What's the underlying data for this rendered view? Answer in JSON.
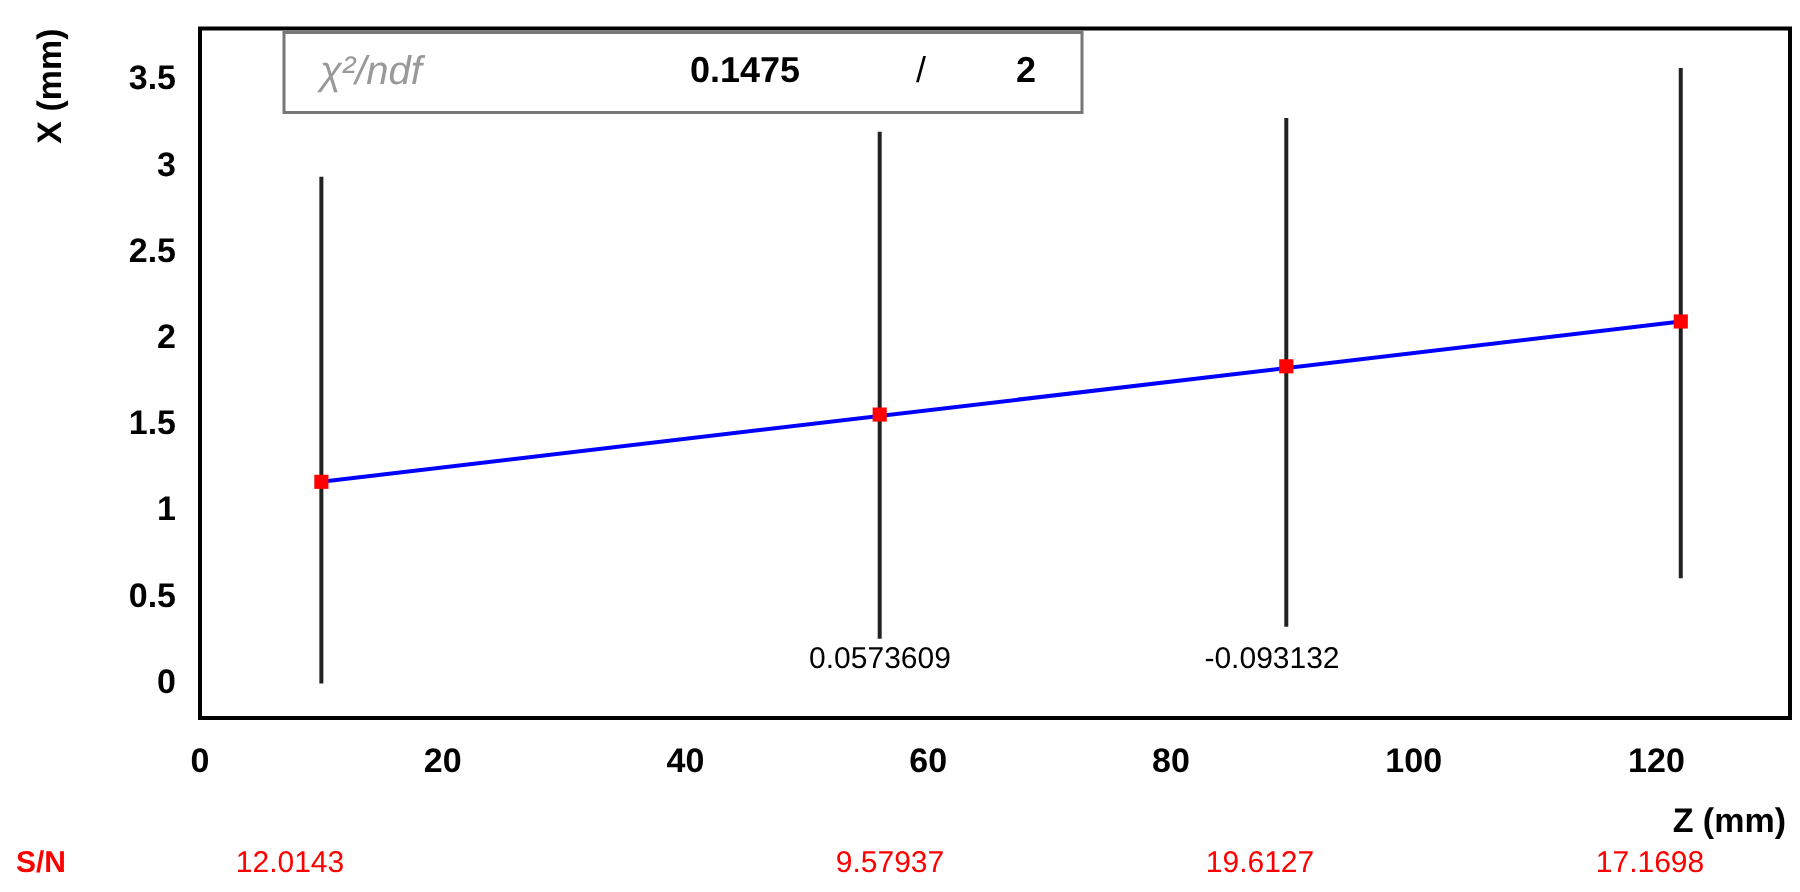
{
  "chart_data": {
    "type": "scatter",
    "xlabel": "Z (mm)",
    "ylabel": "X (mm)",
    "xlim": [
      0,
      131
    ],
    "xticks": [
      0,
      20,
      40,
      60,
      80,
      100,
      120
    ],
    "ylim": [
      -0.2,
      3.8
    ],
    "yticks": [
      0,
      0.5,
      1,
      1.5,
      2,
      2.5,
      3,
      3.5
    ],
    "grid": false,
    "legend": false,
    "series": [
      {
        "color": "#ff0000",
        "marker": "square",
        "x": [
          10,
          56,
          89.5,
          122
        ],
        "values": [
          1.17,
          1.56,
          1.84,
          2.1
        ],
        "errors": [
          [
            0,
            2.94
          ],
          [
            0.26,
            3.2
          ],
          [
            0.33,
            3.28
          ],
          [
            0.61,
            3.57
          ]
        ]
      },
      {
        "type": "line",
        "marker": "none",
        "color": "#0000ff",
        "x": [
          10,
          122
        ],
        "values": [
          1.17,
          2.1
        ]
      }
    ],
    "annotations": [
      "χ²/ndf",
      "0.1475",
      "/",
      "2",
      "S/N",
      "0.0573609",
      "-0.093132",
      "12.0143",
      "9.57937",
      "19.6127",
      "17.1698"
    ]
  }
}
